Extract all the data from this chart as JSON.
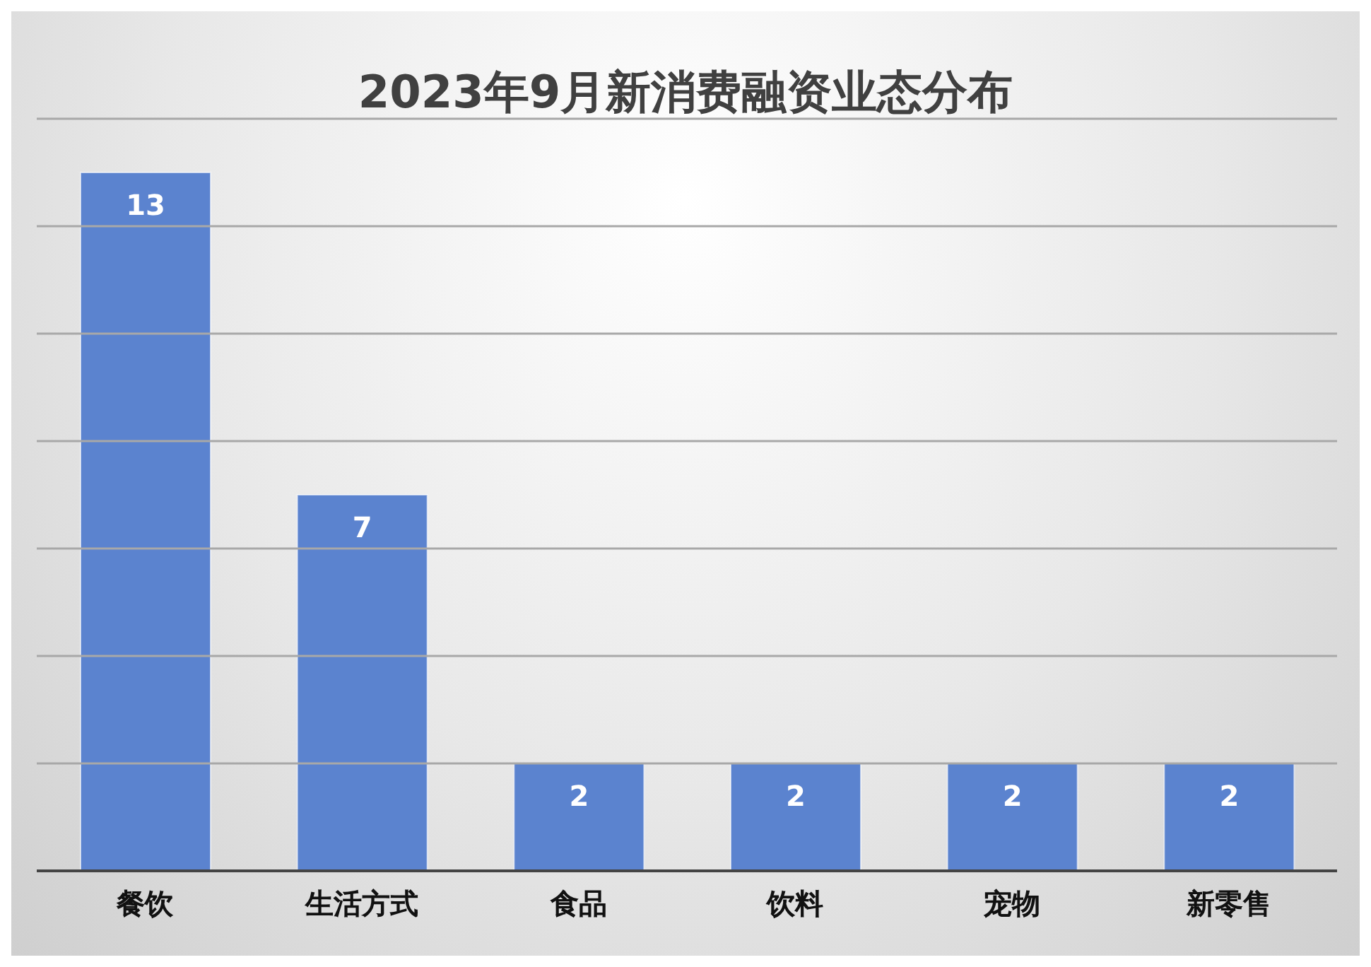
{
  "chart_data": {
    "type": "bar",
    "title": "2023年9月新消费融资业态分布",
    "categories": [
      "餐饮",
      "生活方式",
      "食品",
      "饮料",
      "宠物",
      "新零售"
    ],
    "values": [
      13,
      7,
      2,
      2,
      2,
      2
    ],
    "color": "#5b83cf",
    "ylim": [
      0,
      14
    ],
    "yticks": [
      {
        "value": 0,
        "label": null
      },
      {
        "value": 2,
        "label": null
      },
      {
        "value": 4,
        "label": null
      },
      {
        "value": 6,
        "label": null
      },
      {
        "value": 8,
        "label": null
      },
      {
        "value": 10,
        "label": null
      },
      {
        "value": 12,
        "label": null
      },
      {
        "value": 14,
        "label": null
      }
    ],
    "tick_labels": "x",
    "grid": "y",
    "data_labels": true,
    "legend": false
  }
}
